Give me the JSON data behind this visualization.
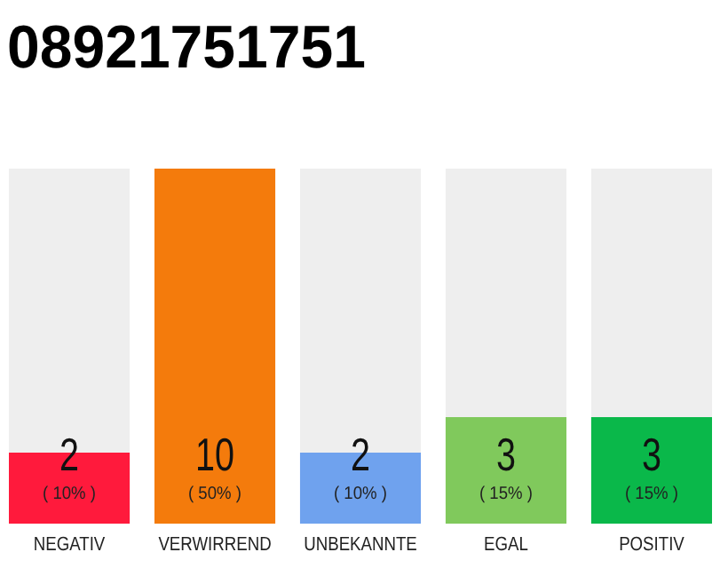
{
  "chart_data": {
    "type": "bar",
    "title": "08921751751",
    "categories": [
      "NEGATIV",
      "VERWIRREND",
      "UNBEKANNTE",
      "EGAL",
      "POSITIV"
    ],
    "values": [
      2,
      10,
      2,
      3,
      3
    ],
    "colors": [
      "#ff1a3c",
      "#f47b0c",
      "#6fa2ee",
      "#80c95c",
      "#0ab84a"
    ],
    "tick_labels": "x",
    "value_labels": [
      "2",
      "10",
      "2",
      "3",
      "3"
    ],
    "annotations": [
      "( 10% )",
      "( 50% )",
      "( 10% )",
      "( 15% )",
      "( 15% )"
    ]
  }
}
